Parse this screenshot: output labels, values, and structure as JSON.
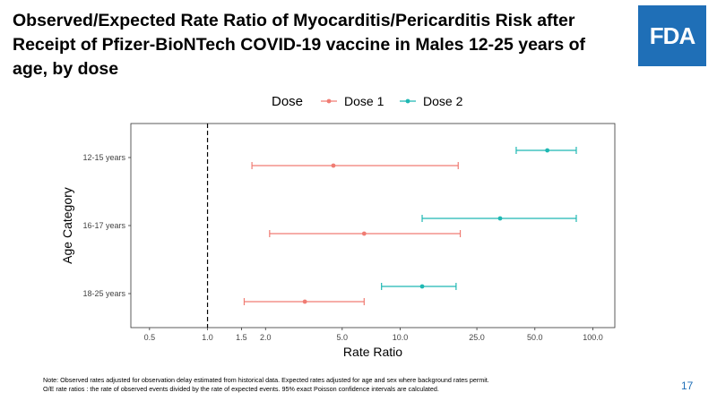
{
  "slide": {
    "title": "Observed/Expected Rate Ratio of Myocarditis/Pericarditis Risk after Receipt of Pfizer-BioNTech COVID-19 vaccine in Males 12-25 years of age, by dose",
    "logo_text": "FDA",
    "note_line1": "Note: Observed rates adjusted for observation delay estimated from historical data. Expected rates adjusted for age and sex where background rates permit.",
    "note_line2": "O/E rate ratios : the rate of observed events divided by the rate of expected events.  95% exact Poisson confidence intervals are calculated.",
    "page_number": "17"
  },
  "colors": {
    "dose1": "#f07c73",
    "dose2": "#1fb8b3",
    "logo": "#1f6fb7",
    "page_number": "#1f6fb7"
  },
  "chart_data": {
    "type": "scatter",
    "subtype": "forest-plot-with-error-bars",
    "xlabel": "Rate Ratio",
    "ylabel": "Age Category",
    "x_scale": "log",
    "xlim": [
      0.4,
      130
    ],
    "x_ticks": [
      {
        "value": 0.5,
        "label": "0.5"
      },
      {
        "value": 1.0,
        "label": "1.0"
      },
      {
        "value": 1.5,
        "label": "1.5"
      },
      {
        "value": 2.0,
        "label": "2.0"
      },
      {
        "value": 5.0,
        "label": "5.0"
      },
      {
        "value": 10.0,
        "label": "10.0"
      },
      {
        "value": 25.0,
        "label": "25.0"
      },
      {
        "value": 50.0,
        "label": "50.0"
      },
      {
        "value": 100.0,
        "label": "100.0"
      }
    ],
    "categories": [
      "12-15 years",
      "16-17 years",
      "18-25 years"
    ],
    "reference_line": 1.0,
    "grid": false,
    "legend": {
      "title": "Dose",
      "position": "top"
    },
    "series": [
      {
        "name": "Dose 1",
        "points": [
          {
            "category": "12-15 years",
            "estimate": 4.5,
            "lower": 1.7,
            "upper": 20
          },
          {
            "category": "16-17 years",
            "estimate": 6.5,
            "lower": 2.1,
            "upper": 20.5
          },
          {
            "category": "18-25 years",
            "estimate": 3.2,
            "lower": 1.55,
            "upper": 6.5
          }
        ]
      },
      {
        "name": "Dose 2",
        "points": [
          {
            "category": "12-15 years",
            "estimate": 58,
            "lower": 40,
            "upper": 82
          },
          {
            "category": "16-17 years",
            "estimate": 33,
            "lower": 13,
            "upper": 82
          },
          {
            "category": "18-25 years",
            "estimate": 13,
            "lower": 8,
            "upper": 19.5
          }
        ]
      }
    ]
  }
}
